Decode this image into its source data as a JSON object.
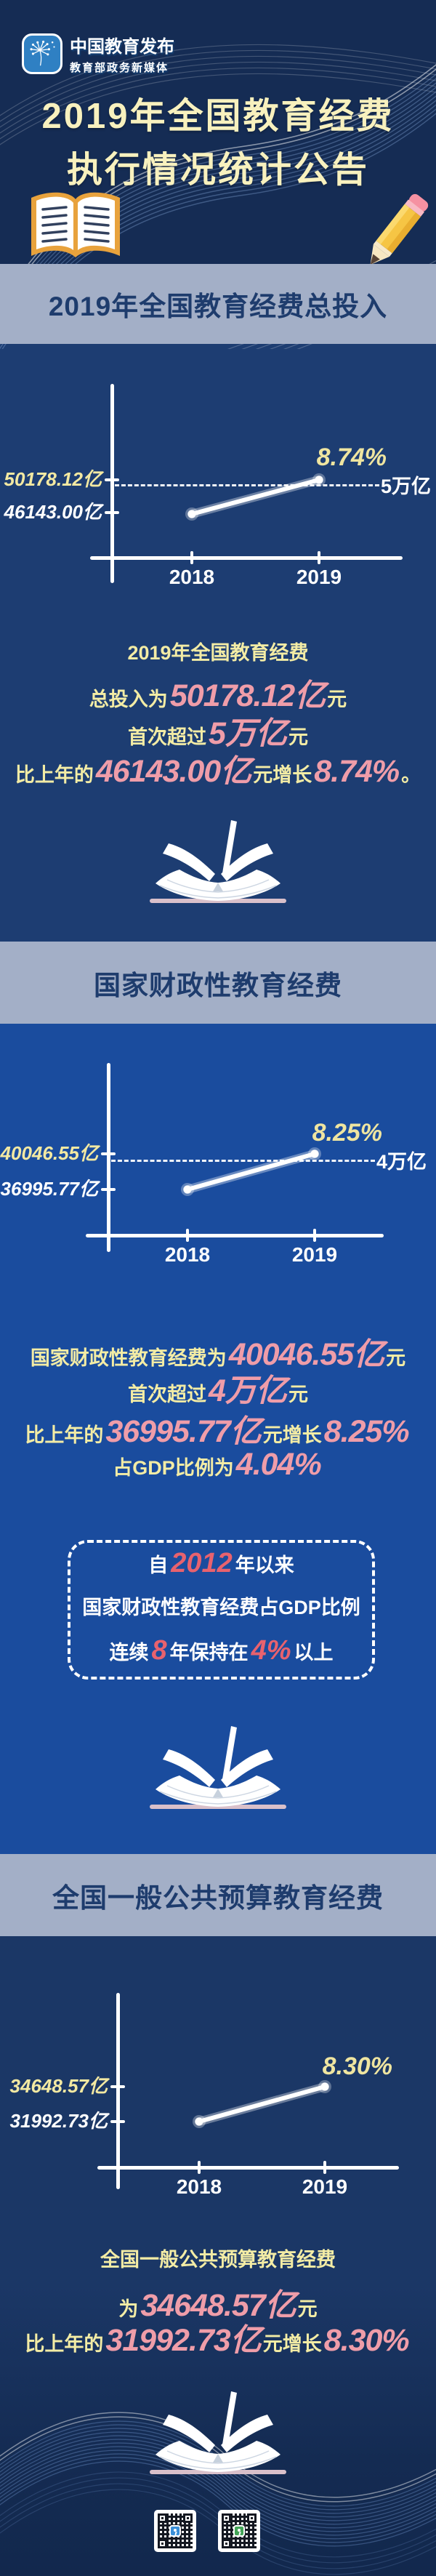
{
  "header": {
    "logo_title": "中国教育发布",
    "logo_subtitle": "教育部政务新媒体",
    "title_line1": "2019年全国教育经费",
    "title_line2": "执行情况统计公告"
  },
  "colors": {
    "page_navy": "#152C54",
    "section1_bg": "#1D3D72",
    "section2_bg": "#1A4C9E",
    "section3_bg": "#1B3766",
    "band_bg": "#A3AFC7",
    "band_text": "#1E3C6D",
    "accent_yellow": "#F3ECA5",
    "accent_pink": "#EF9DA9",
    "accent_red": "#E8626E",
    "title_yellow": "#F8F1BE"
  },
  "chart_data": [
    {
      "type": "line",
      "title": "2019年全国教育经费总投入",
      "x": [
        "2018",
        "2019"
      ],
      "series": [
        {
          "name": "全国教育经费总投入",
          "values": [
            46143.0,
            50178.12
          ]
        }
      ],
      "unit": "亿元",
      "reference_line": {
        "value": 50000,
        "label": "5万亿"
      },
      "annotations": [
        "8.74%"
      ],
      "grid": false,
      "legend": "none"
    },
    {
      "type": "line",
      "title": "国家财政性教育经费",
      "x": [
        "2018",
        "2019"
      ],
      "series": [
        {
          "name": "国家财政性教育经费",
          "values": [
            36995.77,
            40046.55
          ]
        }
      ],
      "unit": "亿元",
      "reference_line": {
        "value": 40000,
        "label": "4万亿"
      },
      "annotations": [
        "8.25%"
      ],
      "grid": false,
      "legend": "none"
    },
    {
      "type": "line",
      "title": "全国一般公共预算教育经费",
      "x": [
        "2018",
        "2019"
      ],
      "series": [
        {
          "name": "全国一般公共预算教育经费",
          "values": [
            31992.73,
            34648.57
          ]
        }
      ],
      "unit": "亿元",
      "annotations": [
        "8.30%"
      ],
      "grid": false,
      "legend": "none"
    }
  ],
  "sections": [
    {
      "band_title": "2019年全国教育经费总投入",
      "chart": {
        "y_top_label": "50178.12亿",
        "y_bottom_label": "46143.00亿",
        "ref_label": "5万亿",
        "growth_label": "8.74%",
        "x_left": "2018",
        "x_right": "2019"
      },
      "lines": [
        {
          "parts": [
            {
              "t": "2019年全国教育经费",
              "s": "y"
            }
          ]
        },
        {
          "parts": [
            {
              "t": "总投入为",
              "s": "y"
            },
            {
              "t": "50178.12亿",
              "s": "p"
            },
            {
              "t": "元",
              "s": "y"
            }
          ]
        },
        {
          "parts": [
            {
              "t": "首次超过",
              "s": "y"
            },
            {
              "t": "5万亿",
              "s": "p"
            },
            {
              "t": "元",
              "s": "y"
            }
          ]
        },
        {
          "parts": [
            {
              "t": "比上年的",
              "s": "y"
            },
            {
              "t": "46143.00亿",
              "s": "p"
            },
            {
              "t": "元增长",
              "s": "y"
            },
            {
              "t": "8.74%",
              "s": "p"
            },
            {
              "t": "。",
              "s": "y"
            }
          ]
        }
      ]
    },
    {
      "band_title": "国家财政性教育经费",
      "chart": {
        "y_top_label": "40046.55亿",
        "y_bottom_label": "36995.77亿",
        "ref_label": "4万亿",
        "growth_label": "8.25%",
        "x_left": "2018",
        "x_right": "2019"
      },
      "lines": [
        {
          "parts": [
            {
              "t": "国家财政性教育经费为",
              "s": "y"
            },
            {
              "t": "40046.55亿",
              "s": "p"
            },
            {
              "t": "元",
              "s": "y"
            }
          ]
        },
        {
          "parts": [
            {
              "t": "首次超过",
              "s": "y"
            },
            {
              "t": "4万亿",
              "s": "p"
            },
            {
              "t": "元",
              "s": "y"
            }
          ]
        },
        {
          "parts": [
            {
              "t": "比上年的",
              "s": "y"
            },
            {
              "t": "36995.77亿",
              "s": "p"
            },
            {
              "t": "元增长",
              "s": "y"
            },
            {
              "t": "8.25%",
              "s": "p"
            }
          ]
        },
        {
          "parts": [
            {
              "t": "占GDP比例为",
              "s": "y"
            },
            {
              "t": "4.04%",
              "s": "p"
            }
          ]
        }
      ]
    },
    {
      "band_title": "全国一般公共预算教育经费",
      "chart": {
        "y_top_label": "34648.57亿",
        "y_bottom_label": "31992.73亿",
        "growth_label": "8.30%",
        "x_left": "2018",
        "x_right": "2019"
      },
      "lines": [
        {
          "parts": [
            {
              "t": "全国一般公共预算教育经费",
              "s": "y"
            }
          ]
        },
        {
          "parts": [
            {
              "t": "为",
              "s": "y"
            },
            {
              "t": "34648.57亿",
              "s": "p"
            },
            {
              "t": "元",
              "s": "y"
            }
          ]
        },
        {
          "parts": [
            {
              "t": "比上年的",
              "s": "y"
            },
            {
              "t": "31992.73亿",
              "s": "p"
            },
            {
              "t": "元增长",
              "s": "y"
            },
            {
              "t": "8.30%",
              "s": "p"
            }
          ]
        }
      ]
    }
  ],
  "gdp_box": {
    "lines": [
      {
        "parts": [
          {
            "t": "自",
            "s": "w"
          },
          {
            "t": "2012",
            "s": "r"
          },
          {
            "t": " 年以来",
            "s": "w"
          }
        ]
      },
      {
        "parts": [
          {
            "t": "国家财政性教育经费占GDP比例",
            "s": "w"
          }
        ]
      },
      {
        "parts": [
          {
            "t": "连续",
            "s": "w"
          },
          {
            "t": "8",
            "s": "r"
          },
          {
            "t": "年保持在",
            "s": "w"
          },
          {
            "t": "4%",
            "s": "r"
          },
          {
            "t": "以上",
            "s": "w"
          }
        ]
      }
    ]
  },
  "icons": {
    "logo": "dandelion-icon",
    "decor": [
      "open-book-cover-icon",
      "pencil-icon",
      "open-book-icon",
      "qr-code"
    ]
  }
}
